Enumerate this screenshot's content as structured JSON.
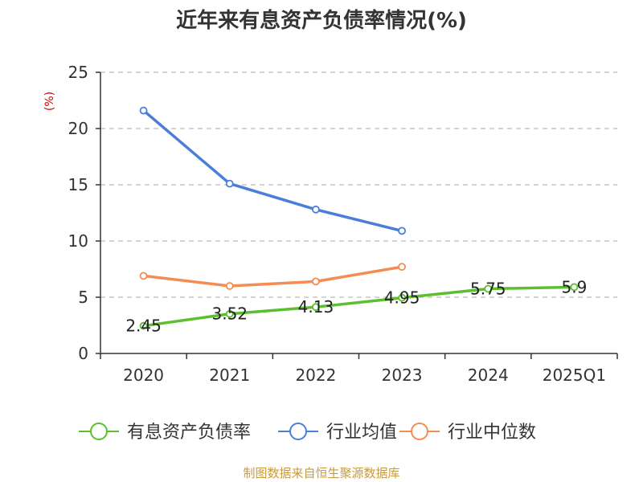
{
  "chart_data": {
    "type": "line",
    "title": "近年来有息资产负债率情况(%)",
    "ylabel": "(%)",
    "xlabel": "",
    "categories": [
      "2020",
      "2021",
      "2022",
      "2023",
      "2024",
      "2025Q1"
    ],
    "ylim": [
      0,
      25
    ],
    "yticks": [
      0,
      5,
      10,
      15,
      20,
      25
    ],
    "grid": true,
    "legend_position": "bottom",
    "series": [
      {
        "name": "有息资产负债率",
        "color": "#5cc02e",
        "values": [
          2.45,
          3.52,
          4.13,
          4.95,
          5.75,
          5.9
        ],
        "labels": [
          "2.45",
          "3.52",
          "4.13",
          "4.95",
          "5.75",
          "5.9"
        ]
      },
      {
        "name": "行业均值",
        "color": "#4a7fd9",
        "values": [
          21.6,
          15.1,
          12.8,
          10.9,
          null,
          null
        ]
      },
      {
        "name": "行业中位数",
        "color": "#f48c54",
        "values": [
          6.9,
          6.0,
          6.4,
          7.7,
          null,
          null
        ]
      }
    ],
    "source": "制图数据来自恒生聚源数据库"
  }
}
